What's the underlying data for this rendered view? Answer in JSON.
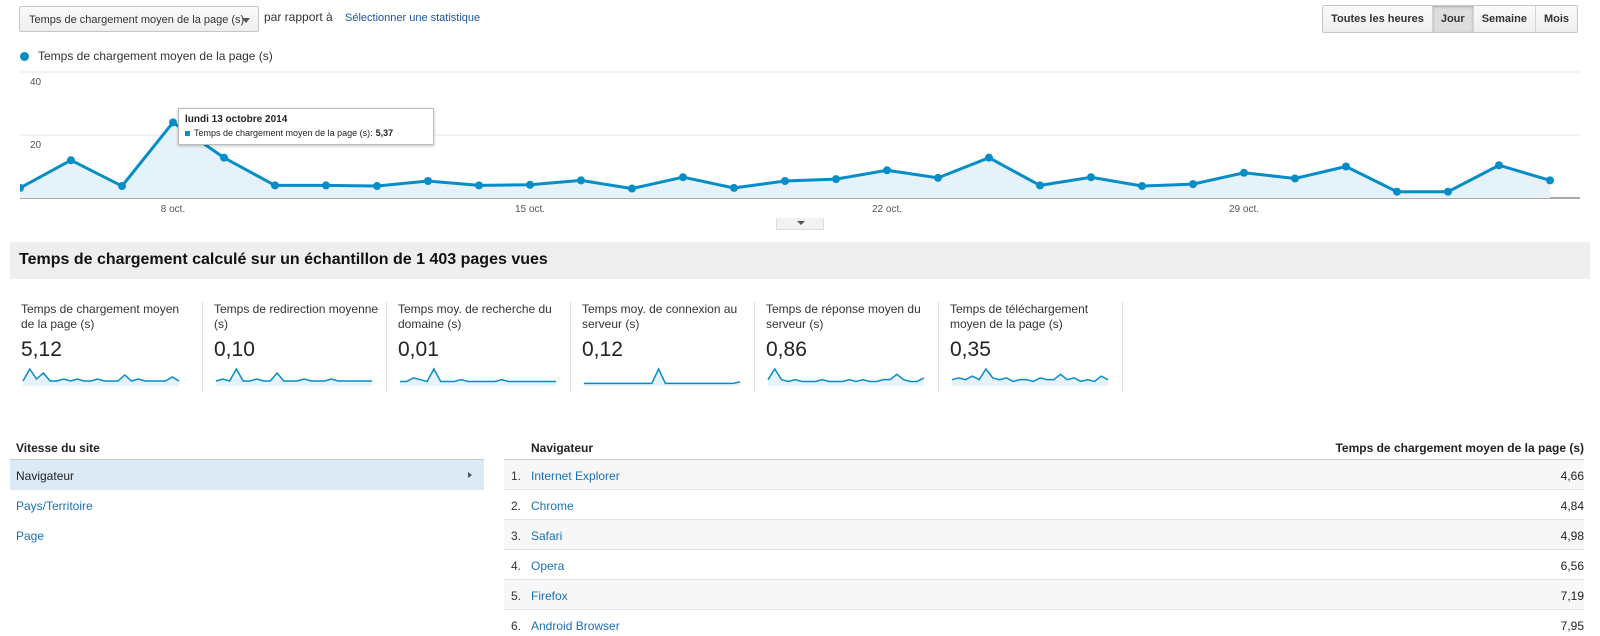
{
  "controls": {
    "metric_select": "Temps de chargement moyen de la page (s)",
    "vs_text": "par rapport à",
    "select_stat": "Sélectionner une statistique",
    "granularity": [
      "Toutes les heures",
      "Jour",
      "Semaine",
      "Mois"
    ],
    "granularity_active": "Jour"
  },
  "chart_data": {
    "type": "line",
    "series": [
      {
        "name": "Temps de chargement moyen de la page (s)",
        "color": "#058dc7",
        "values": [
          3.2,
          12.0,
          3.8,
          24.0,
          12.8,
          4.0,
          4.0,
          3.8,
          5.4,
          4.0,
          4.2,
          5.6,
          3.0,
          6.6,
          3.2,
          5.4,
          6.0,
          8.8,
          6.4,
          12.8,
          4.0,
          6.6,
          3.8,
          4.4,
          8.0,
          6.2,
          10.0,
          2.0,
          2.0,
          10.4,
          5.6
        ]
      }
    ],
    "yticks": [
      "40",
      "20"
    ],
    "ylim": [
      0,
      40
    ],
    "xticks": [
      "8 oct.",
      "15 oct.",
      "22 oct.",
      "29 oct."
    ],
    "grid": true
  },
  "tooltip": {
    "date": "lundi 13 octobre 2014",
    "series_label": "Temps de chargement moyen de la page (s):",
    "value": "5,37"
  },
  "sample_banner": "Temps de chargement calculé sur un échantillon de 1 403 pages vues",
  "stats": [
    {
      "label": "Temps de chargement moyen de la page (s)",
      "value": "5,12",
      "spark": [
        2,
        8,
        3,
        6,
        2,
        2,
        3,
        2,
        3,
        2,
        2,
        3,
        2,
        2,
        2,
        5,
        2,
        3,
        2,
        2,
        2,
        2,
        4,
        2
      ]
    },
    {
      "label": "Temps de redirection moyenne (s)",
      "value": "0,10",
      "spark": [
        2,
        3,
        2,
        8,
        2,
        2,
        3,
        2,
        2,
        6,
        2,
        2,
        2,
        3,
        2,
        2,
        2,
        3,
        2,
        2,
        2,
        2,
        2,
        2
      ]
    },
    {
      "label": "Temps moy. de recherche du domaine (s)",
      "value": "0,01",
      "spark": [
        2,
        2,
        4,
        3,
        2,
        9,
        2,
        2,
        2,
        3,
        2,
        2,
        2,
        2,
        2,
        3,
        2,
        2,
        2,
        2,
        2,
        2,
        2,
        2
      ]
    },
    {
      "label": "Temps moy. de connexion au serveur (s)",
      "value": "0,12",
      "spark": [
        1,
        1,
        1,
        1,
        1,
        1,
        1,
        1,
        1,
        1,
        1,
        10,
        1,
        1,
        1,
        1,
        1,
        1,
        1,
        1,
        1,
        1,
        1,
        2
      ]
    },
    {
      "label": "Temps de réponse moyen du serveur (s)",
      "value": "0,86",
      "spark": [
        3,
        9,
        3,
        2,
        3,
        2,
        2,
        2,
        3,
        2,
        2,
        2,
        3,
        2,
        3,
        2,
        2,
        3,
        3,
        6,
        3,
        2,
        2,
        4
      ]
    },
    {
      "label": "Temps de téléchargement moyen de la page (s)",
      "value": "0,35",
      "spark": [
        3,
        4,
        3,
        5,
        3,
        9,
        4,
        3,
        4,
        2,
        3,
        3,
        2,
        4,
        3,
        3,
        6,
        3,
        4,
        2,
        3,
        2,
        5,
        3
      ]
    }
  ],
  "left_table": {
    "header": "Vitesse du site",
    "rows": [
      "Navigateur",
      "Pays/Territoire",
      "Page"
    ]
  },
  "right_table": {
    "header_name": "Navigateur",
    "header_value": "Temps de chargement moyen de la page (s)",
    "rows": [
      {
        "num": "1.",
        "name": "Internet Explorer",
        "value": "4,66"
      },
      {
        "num": "2.",
        "name": "Chrome",
        "value": "4,84"
      },
      {
        "num": "3.",
        "name": "Safari",
        "value": "4,98"
      },
      {
        "num": "4.",
        "name": "Opera",
        "value": "6,56"
      },
      {
        "num": "5.",
        "name": "Firefox",
        "value": "7,19"
      },
      {
        "num": "6.",
        "name": "Android Browser",
        "value": "7,95"
      }
    ]
  }
}
